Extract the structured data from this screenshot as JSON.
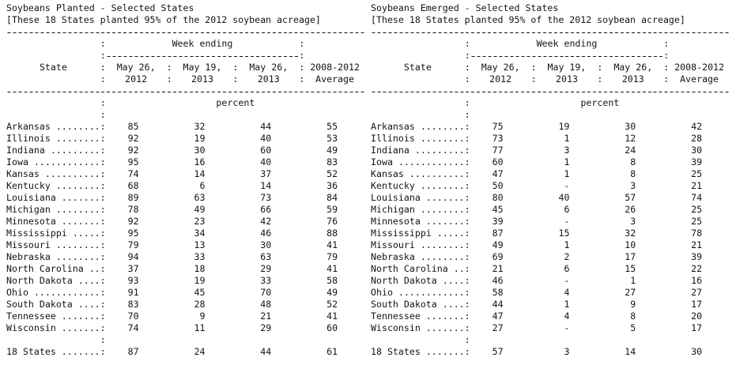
{
  "separator": ":",
  "panels": [
    {
      "title": "Soybeans Planted - Selected States",
      "note": "[These 18 States planted 95% of the 2012 soybean acreage]",
      "header": {
        "group_label": "Week ending",
        "row_header": "State",
        "columns": [
          {
            "line1": "May 26,",
            "line2": "2012"
          },
          {
            "line1": "May 19,",
            "line2": "2013"
          },
          {
            "line1": "May 26,",
            "line2": "2013"
          },
          {
            "line1": "2008-2012",
            "line2": "Average"
          }
        ],
        "unit": "percent"
      },
      "rows": [
        {
          "label": "Arkansas ........:",
          "values": [
            "85",
            "32",
            "44",
            "55"
          ]
        },
        {
          "label": "Illinois ........:",
          "values": [
            "92",
            "19",
            "40",
            "53"
          ]
        },
        {
          "label": "Indiana .........:",
          "values": [
            "92",
            "30",
            "60",
            "49"
          ]
        },
        {
          "label": "Iowa ............:",
          "values": [
            "95",
            "16",
            "40",
            "83"
          ]
        },
        {
          "label": "Kansas ..........:",
          "values": [
            "74",
            "14",
            "37",
            "52"
          ]
        },
        {
          "label": "Kentucky ........:",
          "values": [
            "68",
            "6",
            "14",
            "36"
          ]
        },
        {
          "label": "Louisiana .......:",
          "values": [
            "89",
            "63",
            "73",
            "84"
          ]
        },
        {
          "label": "Michigan ........:",
          "values": [
            "78",
            "49",
            "66",
            "59"
          ]
        },
        {
          "label": "Minnesota .......:",
          "values": [
            "92",
            "23",
            "42",
            "76"
          ]
        },
        {
          "label": "Mississippi .....:",
          "values": [
            "95",
            "34",
            "46",
            "88"
          ]
        },
        {
          "label": "Missouri ........:",
          "values": [
            "79",
            "13",
            "30",
            "41"
          ]
        },
        {
          "label": "Nebraska ........:",
          "values": [
            "94",
            "33",
            "63",
            "79"
          ]
        },
        {
          "label": "North Carolina ..:",
          "values": [
            "37",
            "18",
            "29",
            "41"
          ]
        },
        {
          "label": "North Dakota ....:",
          "values": [
            "93",
            "19",
            "33",
            "58"
          ]
        },
        {
          "label": "Ohio ............:",
          "values": [
            "91",
            "45",
            "70",
            "49"
          ]
        },
        {
          "label": "South Dakota ....:",
          "values": [
            "83",
            "28",
            "48",
            "52"
          ]
        },
        {
          "label": "Tennessee .......:",
          "values": [
            "70",
            "9",
            "21",
            "41"
          ]
        },
        {
          "label": "Wisconsin .......:",
          "values": [
            "74",
            "11",
            "29",
            "60"
          ]
        }
      ],
      "total": {
        "label": "18 States .......:",
        "values": [
          "87",
          "24",
          "44",
          "61"
        ]
      }
    },
    {
      "title": "Soybeans Emerged - Selected States",
      "note": "[These 18 States planted 95% of the 2012 soybean acreage]",
      "header": {
        "group_label": "Week ending",
        "row_header": "State",
        "columns": [
          {
            "line1": "May 26,",
            "line2": "2012"
          },
          {
            "line1": "May 19,",
            "line2": "2013"
          },
          {
            "line1": "May 26,",
            "line2": "2013"
          },
          {
            "line1": "2008-2012",
            "line2": "Average"
          }
        ],
        "unit": "percent"
      },
      "rows": [
        {
          "label": "Arkansas ........:",
          "values": [
            "75",
            "19",
            "30",
            "42"
          ]
        },
        {
          "label": "Illinois ........:",
          "values": [
            "73",
            "1",
            "12",
            "28"
          ]
        },
        {
          "label": "Indiana .........:",
          "values": [
            "77",
            "3",
            "24",
            "30"
          ]
        },
        {
          "label": "Iowa ............:",
          "values": [
            "60",
            "1",
            "8",
            "39"
          ]
        },
        {
          "label": "Kansas ..........:",
          "values": [
            "47",
            "1",
            "8",
            "25"
          ]
        },
        {
          "label": "Kentucky ........:",
          "values": [
            "50",
            "-",
            "3",
            "21"
          ]
        },
        {
          "label": "Louisiana .......:",
          "values": [
            "80",
            "40",
            "57",
            "74"
          ]
        },
        {
          "label": "Michigan ........:",
          "values": [
            "45",
            "6",
            "26",
            "25"
          ]
        },
        {
          "label": "Minnesota .......:",
          "values": [
            "39",
            "-",
            "3",
            "25"
          ]
        },
        {
          "label": "Mississippi .....:",
          "values": [
            "87",
            "15",
            "32",
            "78"
          ]
        },
        {
          "label": "Missouri ........:",
          "values": [
            "49",
            "1",
            "10",
            "21"
          ]
        },
        {
          "label": "Nebraska ........:",
          "values": [
            "69",
            "2",
            "17",
            "39"
          ]
        },
        {
          "label": "North Carolina ..:",
          "values": [
            "21",
            "6",
            "15",
            "22"
          ]
        },
        {
          "label": "North Dakota ....:",
          "values": [
            "46",
            "-",
            "1",
            "16"
          ]
        },
        {
          "label": "Ohio ............:",
          "values": [
            "58",
            "4",
            "27",
            "27"
          ]
        },
        {
          "label": "South Dakota ....:",
          "values": [
            "44",
            "1",
            "9",
            "17"
          ]
        },
        {
          "label": "Tennessee .......:",
          "values": [
            "47",
            "4",
            "8",
            "20"
          ]
        },
        {
          "label": "Wisconsin .......:",
          "values": [
            "27",
            "-",
            "5",
            "17"
          ]
        }
      ],
      "total": {
        "label": "18 States .......:",
        "values": [
          "57",
          "3",
          "14",
          "30"
        ]
      }
    }
  ]
}
